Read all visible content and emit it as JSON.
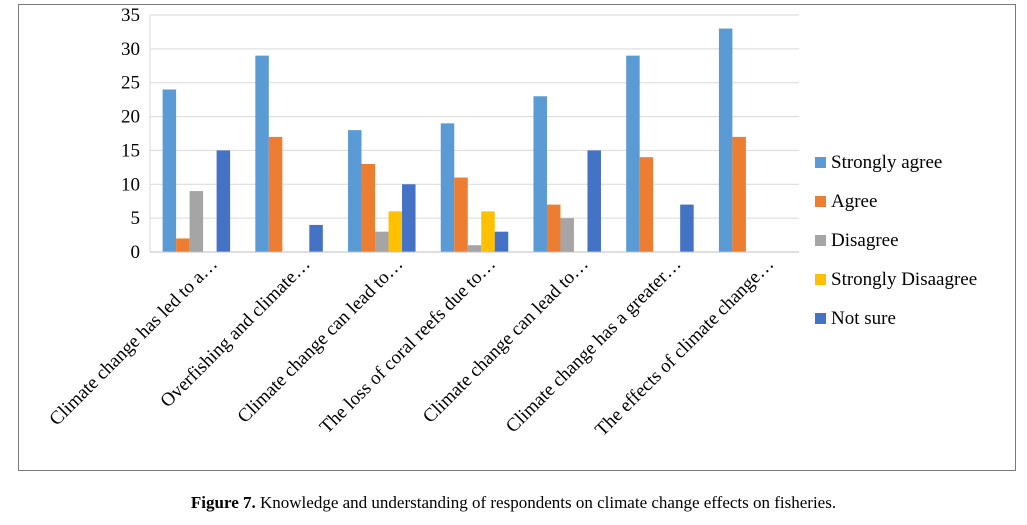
{
  "chart_data": {
    "type": "bar",
    "title": "",
    "xlabel": "",
    "ylabel": "",
    "ylim": [
      0,
      35
    ],
    "yticks": [
      0,
      5,
      10,
      15,
      20,
      25,
      30,
      35
    ],
    "grid": true,
    "legend_position": "right",
    "categories": [
      "Climate change has led to a…",
      "Overfishing and climate…",
      "Climate change can lead to…",
      "The loss of coral reefs due to…",
      "Climate change can lead to…",
      "Climate change has a greater…",
      "The effects of climate change…"
    ],
    "series": [
      {
        "name": "Strongly agree",
        "color": "#5b9bd5",
        "values": [
          24,
          29,
          18,
          19,
          23,
          29,
          33
        ]
      },
      {
        "name": "Agree",
        "color": "#ed7d31",
        "values": [
          2,
          17,
          13,
          11,
          7,
          14,
          17
        ]
      },
      {
        "name": "Disagree",
        "color": "#a5a5a5",
        "values": [
          9,
          0,
          3,
          1,
          5,
          0,
          0
        ]
      },
      {
        "name": "Strongly Disaagree",
        "color": "#ffc000",
        "values": [
          0,
          0,
          6,
          6,
          0,
          0,
          0
        ]
      },
      {
        "name": "Not sure",
        "color": "#4472c4",
        "values": [
          15,
          4,
          10,
          3,
          15,
          7,
          0
        ]
      }
    ]
  },
  "caption": {
    "label": "Figure 7.",
    "text": " Knowledge and understanding of respondents on climate change effects on fisheries."
  }
}
